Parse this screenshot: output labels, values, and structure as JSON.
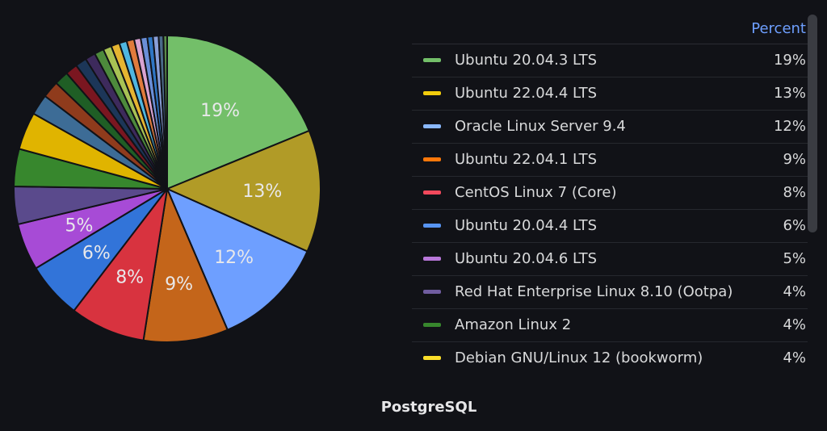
{
  "chart_data": {
    "type": "pie",
    "title": "PostgreSQL",
    "legend_header": "Percent",
    "legend_position": "right",
    "slices": [
      {
        "label": "Ubuntu 20.04.3 LTS",
        "value": 19,
        "display": "19%",
        "color": "#73bf69",
        "legend_color": "#73bf69"
      },
      {
        "label": "Ubuntu 22.04.4 LTS",
        "value": 13,
        "display": "13%",
        "color": "#b19b27",
        "legend_color": "#f2cc0c"
      },
      {
        "label": "Oracle Linux Server 9.4",
        "value": 12,
        "display": "12%",
        "color": "#6e9fff",
        "legend_color": "#8ab8ff"
      },
      {
        "label": "Ubuntu 22.04.1 LTS",
        "value": 9,
        "display": "9%",
        "color": "#c4651a",
        "legend_color": "#ff780a"
      },
      {
        "label": "CentOS Linux 7 (Core)",
        "value": 8,
        "display": "8%",
        "color": "#d8333f",
        "legend_color": "#f2495c"
      },
      {
        "label": "Ubuntu 20.04.4 LTS",
        "value": 6,
        "display": "6%",
        "color": "#3274d9",
        "legend_color": "#5794f2"
      },
      {
        "label": "Ubuntu 20.04.6 LTS",
        "value": 5,
        "display": "5%",
        "color": "#a74bd6",
        "legend_color": "#b877d9"
      },
      {
        "label": "Red Hat Enterprise Linux 8.10 (Ootpa)",
        "value": 4,
        "display": "4%",
        "color": "#5a4a8c",
        "legend_color": "#705da0"
      },
      {
        "label": "Amazon Linux 2",
        "value": 4,
        "display": "4%",
        "color": "#37872d",
        "legend_color": "#37872d"
      },
      {
        "label": "Debian GNU/Linux 12 (bookworm)",
        "value": 4,
        "display": "4%",
        "color": "#e0b400",
        "legend_color": "#fade2a"
      }
    ],
    "other_slices": [
      {
        "value": 2.2,
        "color": "#3d6c96"
      },
      {
        "value": 1.8,
        "color": "#8f3b1c"
      },
      {
        "value": 1.5,
        "color": "#1f5e25"
      },
      {
        "value": 1.3,
        "color": "#7a1620"
      },
      {
        "value": 1.2,
        "color": "#1c3658"
      },
      {
        "value": 1.1,
        "color": "#3d2a5c"
      },
      {
        "value": 1.0,
        "color": "#4d8a3c"
      },
      {
        "value": 0.9,
        "color": "#a8c254"
      },
      {
        "value": 0.9,
        "color": "#e5b431"
      },
      {
        "value": 0.8,
        "color": "#4fb6e0"
      },
      {
        "value": 0.8,
        "color": "#e07b3c"
      },
      {
        "value": 0.7,
        "color": "#d9a3d1"
      },
      {
        "value": 0.7,
        "color": "#6a8fd8"
      },
      {
        "value": 0.6,
        "color": "#2f76c4"
      },
      {
        "value": 0.6,
        "color": "#8a9fd8"
      },
      {
        "value": 0.5,
        "color": "#4a6a8a"
      },
      {
        "value": 0.4,
        "color": "#5a8a4a"
      }
    ]
  }
}
